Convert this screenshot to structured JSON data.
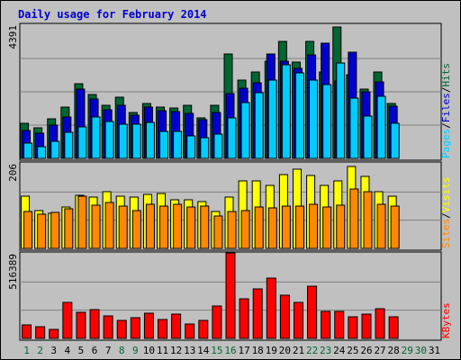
{
  "title": "Daily usage for February 2014",
  "colors": {
    "background": "#c0c0c0",
    "title": "#0000cc",
    "hits": "#006633",
    "files": "#0000cc",
    "pages": "#00ccff",
    "visits": "#ffff00",
    "sites": "#ff8800",
    "kbytes": "#ff0000",
    "weekday_label": "#000000",
    "weekend_label": "#006633"
  },
  "chart_data": {
    "type": "bar",
    "days": [
      "1",
      "2",
      "3",
      "4",
      "5",
      "6",
      "7",
      "8",
      "9",
      "10",
      "11",
      "12",
      "13",
      "14",
      "15",
      "16",
      "17",
      "18",
      "19",
      "20",
      "21",
      "22",
      "23",
      "24",
      "25",
      "26",
      "27",
      "28",
      "29",
      "30",
      "31"
    ],
    "weekend_days": [
      "1",
      "2",
      "8",
      "9",
      "15",
      "16",
      "22",
      "23",
      "29",
      "30"
    ],
    "panels": [
      {
        "id": "requests",
        "scale_label": "4391",
        "ymax": 4391,
        "side_labels": [
          "Pages",
          "Files",
          "Hits"
        ],
        "series": [
          {
            "name": "Hits",
            "values": [
              1170,
              1010,
              1300,
              1690,
              2470,
              2120,
              1750,
              2020,
              1520,
              1800,
              1680,
              1650,
              1750,
              1330,
              1760,
              3440,
              2570,
              2860,
              3190,
              3850,
              3160,
              3870,
              2860,
              4320,
              2760,
              2280,
              2850,
              1800,
              0,
              0,
              0
            ]
          },
          {
            "name": "Files",
            "values": [
              930,
              830,
              1110,
              1370,
              2280,
              1950,
              1590,
              1750,
              1410,
              1680,
              1570,
              1550,
              1470,
              1280,
              1510,
              2130,
              2310,
              2500,
              3450,
              3200,
              2970,
              3400,
              3810,
              2550,
              3490,
              2200,
              2510,
              1730,
              0,
              0,
              0
            ]
          },
          {
            "name": "Pages",
            "values": [
              500,
              400,
              570,
              850,
              1050,
              1350,
              1220,
              1130,
              1140,
              1190,
              900,
              890,
              750,
              680,
              800,
              1340,
              1830,
              2170,
              2580,
              3100,
              2810,
              2570,
              2430,
              3140,
              1990,
              1380,
              2050,
              1170,
              0,
              0,
              0
            ]
          }
        ]
      },
      {
        "id": "visits",
        "scale_label": "206",
        "ymax": 206,
        "side_labels": [
          "Sites",
          "Visits"
        ],
        "series": [
          {
            "name": "Visits",
            "values": [
              128,
              92,
              86,
              100,
              130,
              124,
              138,
              128,
              125,
              131,
              133,
              119,
              119,
              114,
              90,
              126,
              165,
              165,
              154,
              180,
              193,
              177,
              154,
              165,
              200,
              176,
              138,
              127,
              0,
              0,
              0
            ]
          },
          {
            "name": "Sites",
            "values": [
              89,
              84,
              87,
              96,
              127,
              106,
              111,
              104,
              93,
              107,
              103,
              107,
              100,
              103,
              78,
              89,
              92,
              101,
              98,
              102,
              103,
              107,
              100,
              105,
              145,
              138,
              107,
              102,
              0,
              0,
              0
            ]
          }
        ]
      },
      {
        "id": "kbytes",
        "scale_label": "516389",
        "ymax": 516389,
        "side_labels": [
          "KBytes"
        ],
        "series": [
          {
            "name": "KBytes",
            "values": [
              80000,
              70000,
              55000,
              220000,
              160000,
              175000,
              140000,
              110000,
              125000,
              155000,
              115000,
              150000,
              90000,
              110000,
              200000,
              520000,
              240000,
              300000,
              370000,
              265000,
              220000,
              320000,
              165000,
              165000,
              130000,
              150000,
              180000,
              130000,
              0,
              0,
              0
            ]
          }
        ]
      }
    ]
  }
}
